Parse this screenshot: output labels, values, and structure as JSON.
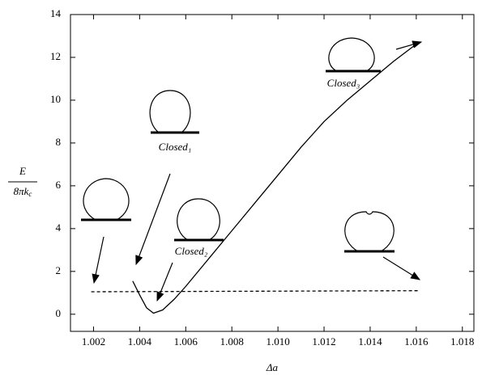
{
  "chart_data": {
    "type": "line",
    "x_label": "Δa",
    "y_label": {
      "numerator": "E",
      "denominator_base": "8πk",
      "denominator_sub": "c"
    },
    "annotations": [
      "Closed₁",
      "Closed₂",
      "Closed₃"
    ],
    "xlim": [
      1.001,
      1.0185
    ],
    "ylim": [
      -0.8,
      14
    ],
    "xticks": [
      {
        "value": 1.002,
        "label": "1.002"
      },
      {
        "value": 1.004,
        "label": "1.004"
      },
      {
        "value": 1.006,
        "label": "1.006"
      },
      {
        "value": 1.008,
        "label": "1.008"
      },
      {
        "value": 1.01,
        "label": "1.010"
      },
      {
        "value": 1.012,
        "label": "1.012"
      },
      {
        "value": 1.014,
        "label": "1.014"
      },
      {
        "value": 1.016,
        "label": "1.016"
      },
      {
        "value": 1.018,
        "label": "1.018"
      }
    ],
    "yticks": [
      0,
      2,
      4,
      6,
      8,
      10,
      12,
      14
    ],
    "series": [
      {
        "color": "#000000",
        "style": "solid",
        "x": [
          1.0037,
          1.004,
          1.0043,
          1.0046,
          1.005,
          1.0055,
          1.006,
          1.007,
          1.008,
          1.009,
          1.01,
          1.011,
          1.012,
          1.013,
          1.014,
          1.015,
          1.0161
        ],
        "values": [
          1.55,
          0.9,
          0.3,
          0.05,
          0.2,
          0.7,
          1.3,
          2.6,
          3.9,
          5.2,
          6.5,
          7.8,
          9.0,
          10.0,
          10.9,
          11.8,
          12.7
        ]
      },
      {
        "color": "#000000",
        "style": "dashed",
        "x": [
          1.0019,
          1.0161
        ],
        "values": [
          1.05,
          1.1
        ]
      }
    ]
  }
}
